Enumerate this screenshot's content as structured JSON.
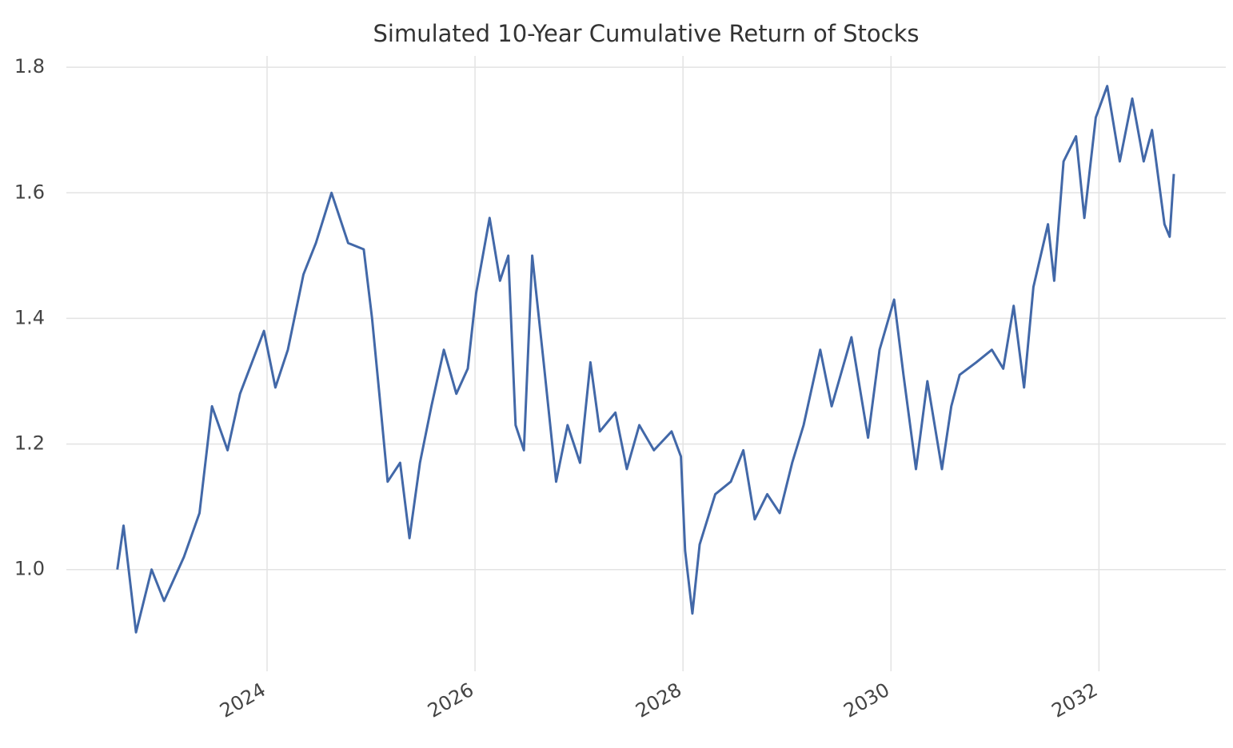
{
  "chart_data": {
    "type": "line",
    "title": "Simulated 10-Year Cumulative Return of Stocks",
    "x": [
      2022.56,
      2022.62,
      2022.74,
      2022.89,
      2023.01,
      2023.2,
      2023.35,
      2023.47,
      2023.62,
      2023.74,
      2023.97,
      2024.08,
      2024.2,
      2024.35,
      2024.47,
      2024.62,
      2024.78,
      2024.93,
      2025.01,
      2025.08,
      2025.16,
      2025.28,
      2025.37,
      2025.47,
      2025.58,
      2025.7,
      2025.82,
      2025.93,
      2026.01,
      2026.14,
      2026.24,
      2026.32,
      2026.39,
      2026.47,
      2026.55,
      2026.66,
      2026.78,
      2026.89,
      2027.01,
      2027.11,
      2027.2,
      2027.35,
      2027.46,
      2027.58,
      2027.72,
      2027.89,
      2027.98,
      2028.02,
      2028.09,
      2028.16,
      2028.31,
      2028.46,
      2028.58,
      2028.69,
      2028.81,
      2028.93,
      2029.05,
      2029.16,
      2029.32,
      2029.43,
      2029.62,
      2029.78,
      2029.89,
      2030.03,
      2030.12,
      2030.24,
      2030.35,
      2030.49,
      2030.58,
      2030.66,
      2030.82,
      2030.97,
      2031.08,
      2031.18,
      2031.28,
      2031.37,
      2031.51,
      2031.57,
      2031.66,
      2031.78,
      2031.86,
      2031.97,
      2032.08,
      2032.2,
      2032.32,
      2032.43,
      2032.51,
      2032.63,
      2032.68,
      2032.72
    ],
    "series": [
      {
        "color": "#4268a8",
        "values": [
          1.0,
          1.07,
          0.9,
          1.0,
          0.95,
          1.02,
          1.09,
          1.26,
          1.19,
          1.28,
          1.38,
          1.29,
          1.35,
          1.47,
          1.52,
          1.6,
          1.52,
          1.51,
          1.4,
          1.28,
          1.14,
          1.17,
          1.05,
          1.17,
          1.26,
          1.35,
          1.28,
          1.32,
          1.44,
          1.56,
          1.46,
          1.5,
          1.23,
          1.19,
          1.5,
          1.33,
          1.14,
          1.23,
          1.17,
          1.33,
          1.22,
          1.25,
          1.16,
          1.23,
          1.19,
          1.22,
          1.18,
          1.03,
          0.93,
          1.04,
          1.12,
          1.14,
          1.19,
          1.08,
          1.12,
          1.09,
          1.17,
          1.23,
          1.35,
          1.26,
          1.37,
          1.21,
          1.35,
          1.43,
          1.31,
          1.16,
          1.3,
          1.16,
          1.26,
          1.31,
          1.33,
          1.35,
          1.32,
          1.42,
          1.29,
          1.45,
          1.55,
          1.46,
          1.65,
          1.69,
          1.56,
          1.72,
          1.77,
          1.65,
          1.75,
          1.65,
          1.7,
          1.55,
          1.53,
          1.63
        ]
      }
    ],
    "xlim": [
      2022.07,
      2033.22
    ],
    "xticks": [
      2024,
      2026,
      2028,
      2030,
      2032
    ],
    "ylim": [
      0.838,
      1.818
    ],
    "yticks": [
      {
        "value": 1,
        "label": "1.0"
      },
      1.2,
      1.4,
      1.6,
      1.8
    ],
    "grid": true
  }
}
